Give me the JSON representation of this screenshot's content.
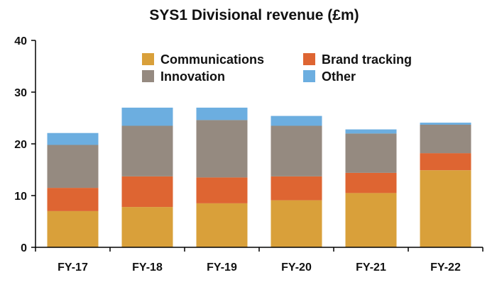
{
  "chart_data": {
    "type": "bar",
    "stacked": true,
    "title": "SYS1 Divisional revenue (£m)",
    "xlabel": "",
    "ylabel": "",
    "categories": [
      "FY-17",
      "FY-18",
      "FY-19",
      "FY-20",
      "FY-21",
      "FY-22"
    ],
    "ylim": [
      0,
      40
    ],
    "yticks": [
      0,
      10,
      20,
      30,
      40
    ],
    "grid": false,
    "legend_position": "top",
    "series": [
      {
        "name": "Communications",
        "color": "#D9A03A",
        "values": [
          7.0,
          7.8,
          8.5,
          9.1,
          10.5,
          14.9
        ]
      },
      {
        "name": "Brand tracking",
        "color": "#DE6532",
        "values": [
          4.5,
          5.9,
          5.0,
          4.6,
          3.9,
          3.3
        ]
      },
      {
        "name": "Innovation",
        "color": "#958A80",
        "values": [
          8.3,
          9.8,
          11.1,
          9.8,
          7.6,
          5.5
        ]
      },
      {
        "name": "Other",
        "color": "#6CAEE0",
        "values": [
          2.3,
          3.5,
          2.4,
          1.9,
          0.8,
          0.4
        ]
      }
    ]
  }
}
